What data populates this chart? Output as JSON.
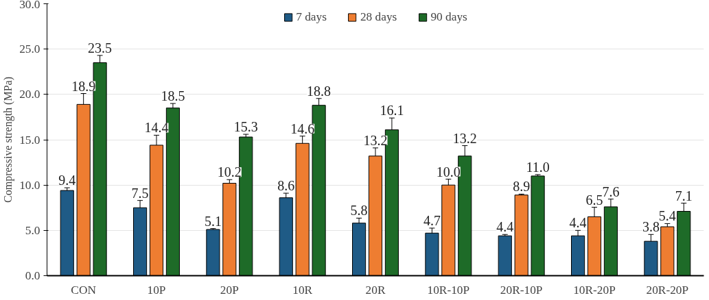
{
  "chart_data": {
    "type": "bar",
    "ylabel": "Compressive strength (MPa)",
    "categories": [
      "CON",
      "10P",
      "20P",
      "10R",
      "20R",
      "10R-10P",
      "20R-10P",
      "10R-20P",
      "20R-20P"
    ],
    "series": [
      {
        "name": "7 days",
        "color": "#1f5b86",
        "values": [
          9.4,
          7.5,
          5.1,
          8.6,
          5.8,
          4.7,
          4.4,
          4.4,
          3.8
        ],
        "errors": [
          0.3,
          0.8,
          0.1,
          0.5,
          0.55,
          0.55,
          0.15,
          0.6,
          0.75
        ],
        "value_labels": [
          "9.4",
          "7.5",
          "5.1",
          "8.6",
          "5.8",
          "4.7",
          "4.4",
          "4.4",
          "3.8"
        ]
      },
      {
        "name": "28 days",
        "color": "#ee7d31",
        "values": [
          18.9,
          14.4,
          10.2,
          14.6,
          13.2,
          10.0,
          8.9,
          6.5,
          5.4
        ],
        "errors": [
          1.2,
          1.1,
          0.4,
          0.8,
          0.9,
          0.65,
          0.1,
          1.05,
          0.35
        ],
        "value_labels": [
          "18.9",
          "14.4",
          "10.2",
          "14.6",
          "13.2",
          "10.0",
          "8.9",
          "6.5",
          "5.4"
        ]
      },
      {
        "name": "90 days",
        "color": "#1e6b28",
        "values": [
          23.5,
          18.5,
          15.3,
          18.8,
          16.1,
          13.2,
          11.0,
          7.6,
          7.1
        ],
        "errors": [
          0.8,
          0.5,
          0.3,
          0.75,
          1.3,
          1.15,
          0.15,
          0.85,
          0.9
        ],
        "value_labels": [
          "23.5",
          "18.5",
          "15.3",
          "18.8",
          "16.1",
          "13.2",
          "11.0",
          "7.6",
          "7.1"
        ]
      }
    ],
    "ylim": [
      0,
      30
    ],
    "yticks": [
      {
        "value": 0,
        "label": "0.0"
      },
      {
        "value": 5,
        "label": "5.0"
      },
      {
        "value": 10,
        "label": "10.0"
      },
      {
        "value": 15,
        "label": "15.0"
      },
      {
        "value": 20,
        "label": "20.0"
      },
      {
        "value": 25,
        "label": "25.0"
      },
      {
        "value": 30,
        "label": "30.0"
      }
    ],
    "grid": "y",
    "legend": "top"
  }
}
